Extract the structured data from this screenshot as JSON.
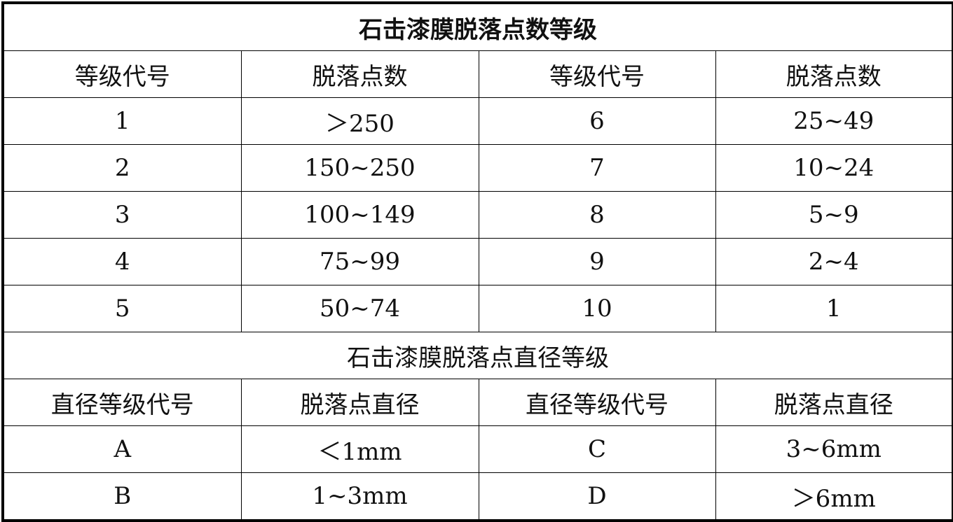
{
  "count_table": {
    "title": "石击漆膜脱落点数等级",
    "headers": [
      "等级代号",
      "脱落点数",
      "等级代号",
      "脱落点数"
    ],
    "rows": [
      [
        "1",
        "＞250",
        "6",
        "25~49"
      ],
      [
        "2",
        "150~250",
        "7",
        "10~24"
      ],
      [
        "3",
        "100~149",
        "8",
        "5~9"
      ],
      [
        "4",
        "75~99",
        "9",
        "2~4"
      ],
      [
        "5",
        "50~74",
        "10",
        "1"
      ]
    ]
  },
  "diameter_table": {
    "title": "石击漆膜脱落点直径等级",
    "headers": [
      "直径等级代号",
      "脱落点直径",
      "直径等级代号",
      "脱落点直径"
    ],
    "rows": [
      [
        "A",
        "＜1mm",
        "C",
        "3~6mm"
      ],
      [
        "B",
        "1~3mm",
        "D",
        "＞6mm"
      ]
    ]
  }
}
